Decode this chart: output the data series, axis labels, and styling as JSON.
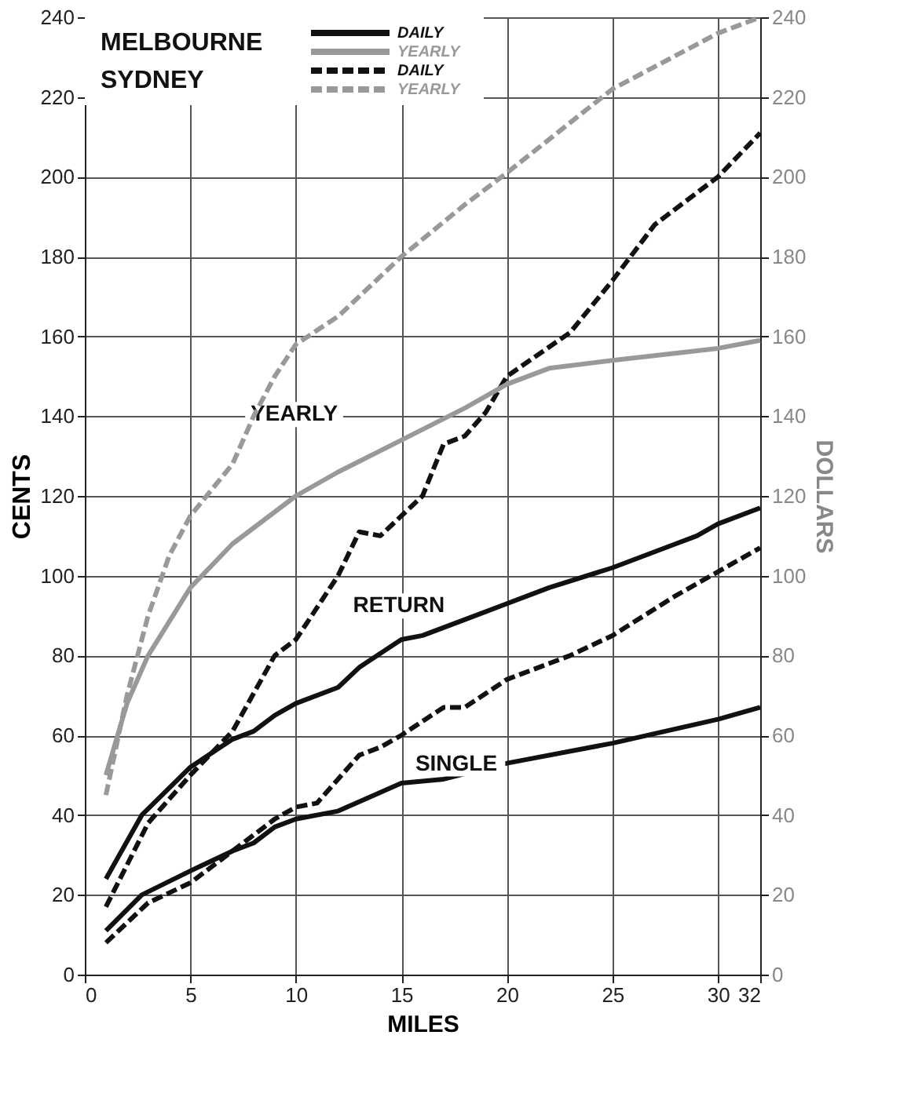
{
  "chart_data": {
    "type": "line",
    "xlabel": "MILES",
    "ylabel": "CENTS",
    "y2label": "DOLLARS",
    "xlim": [
      0,
      32
    ],
    "xticks": [
      0,
      5,
      10,
      15,
      20,
      25,
      30,
      32
    ],
    "ylim": [
      0,
      240
    ],
    "yticks": [
      0,
      20,
      40,
      60,
      80,
      100,
      120,
      140,
      160,
      180,
      200,
      220,
      240
    ],
    "y2lim": [
      0,
      240
    ],
    "y2ticks": [
      0,
      20,
      40,
      60,
      80,
      100,
      120,
      140,
      160,
      180,
      200,
      220,
      240
    ],
    "grid": true,
    "legend": "top left",
    "marker": "none",
    "annotations": [
      "MELBOURNE",
      "SYDNEY",
      "YEARLY",
      "RETURN",
      "SINGLE"
    ],
    "series": [
      {
        "color": "#111111",
        "line_style": "solid",
        "x": [
          1,
          2.7,
          5,
          7,
          8,
          9,
          10,
          12,
          15,
          17,
          20,
          25,
          30,
          32
        ],
        "values": [
          11,
          20,
          26,
          31,
          33,
          37,
          39,
          41,
          48,
          49,
          53,
          58,
          64,
          67
        ]
      },
      {
        "name": "DAILY",
        "color": "#111111",
        "line_style": "solid",
        "x": [
          1,
          2.7,
          5,
          7,
          8,
          9,
          10,
          12,
          13,
          15,
          16,
          18,
          20,
          22,
          25,
          28,
          29,
          30,
          32
        ],
        "values": [
          24,
          40,
          52,
          59,
          61,
          65,
          68,
          72,
          77,
          84,
          85,
          89,
          93,
          97,
          102,
          108,
          110,
          113,
          117
        ]
      },
      {
        "name": "YEARLY",
        "color": "#999999",
        "line_style": "solid",
        "axis": "y2",
        "x": [
          1,
          2,
          3,
          5,
          7,
          10,
          12,
          15,
          18,
          20,
          22,
          25,
          30,
          32
        ],
        "values": [
          50,
          68,
          80,
          97,
          108,
          120,
          126,
          134,
          142,
          148,
          152,
          154,
          157,
          159
        ]
      },
      {
        "color": "#111111",
        "line_style": "dashed",
        "x": [
          1,
          3,
          5,
          7,
          9,
          10,
          11,
          13,
          14,
          15,
          17,
          18,
          20,
          22,
          23,
          25,
          28,
          30,
          32
        ],
        "values": [
          8,
          18,
          23,
          31,
          39,
          42,
          43,
          55,
          57,
          60,
          67,
          67,
          74,
          78,
          80,
          85,
          95,
          101,
          107
        ]
      },
      {
        "name": "DAILY",
        "color": "#111111",
        "line_style": "dashed",
        "x": [
          1,
          3,
          5,
          7,
          9,
          10,
          12,
          13,
          14,
          15,
          16,
          17,
          18,
          19,
          20,
          23,
          25,
          27,
          30,
          32
        ],
        "values": [
          17,
          38,
          50,
          61,
          80,
          84,
          100,
          111,
          110,
          115,
          120,
          133,
          135,
          141,
          150,
          161,
          174,
          188,
          200,
          211
        ]
      },
      {
        "name": "YEARLY",
        "color": "#999999",
        "line_style": "dashed",
        "axis": "y2",
        "x": [
          1,
          2,
          3,
          4,
          5,
          7,
          8,
          9,
          10,
          12,
          15,
          18,
          20,
          25,
          30,
          32
        ],
        "values": [
          45,
          70,
          90,
          105,
          115,
          128,
          140,
          150,
          158,
          165,
          180,
          193,
          201,
          222,
          236,
          240
        ]
      }
    ]
  }
}
